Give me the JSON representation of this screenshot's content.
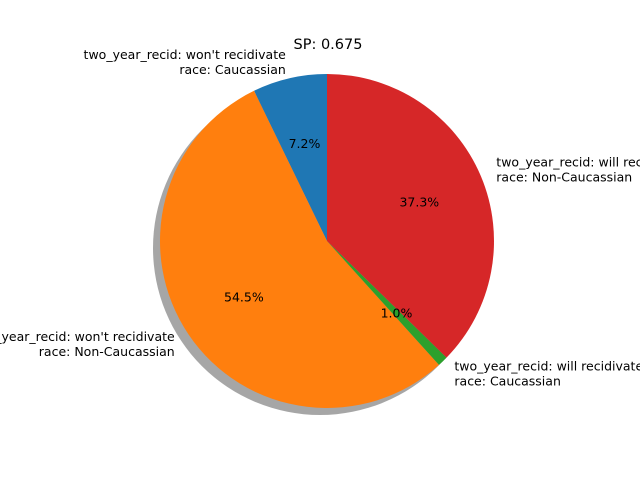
{
  "chart_data": {
    "type": "pie",
    "title": "SP: 0.675",
    "start_angle_deg": 90,
    "direction": "counterclockwise",
    "shadow": true,
    "slices": [
      {
        "label_lines": [
          "two_year_recid: won't recidivate",
          "race: Caucassian"
        ],
        "value": 7.2,
        "pct_label": "7.2%",
        "color": "#1f77b4"
      },
      {
        "label_lines": [
          "two_year_recid: won't recidivate",
          "race: Non-Caucassian"
        ],
        "value": 54.5,
        "pct_label": "54.5%",
        "color": "#ff7f0e"
      },
      {
        "label_lines": [
          "two_year_recid: will recidivate",
          "race: Caucassian"
        ],
        "value": 1.0,
        "pct_label": "1.0%",
        "color": "#2ca02c"
      },
      {
        "label_lines": [
          "two_year_recid: will recidivate",
          "race: Non-Caucassian"
        ],
        "value": 37.3,
        "pct_label": "37.3%",
        "color": "#d62728"
      }
    ]
  }
}
